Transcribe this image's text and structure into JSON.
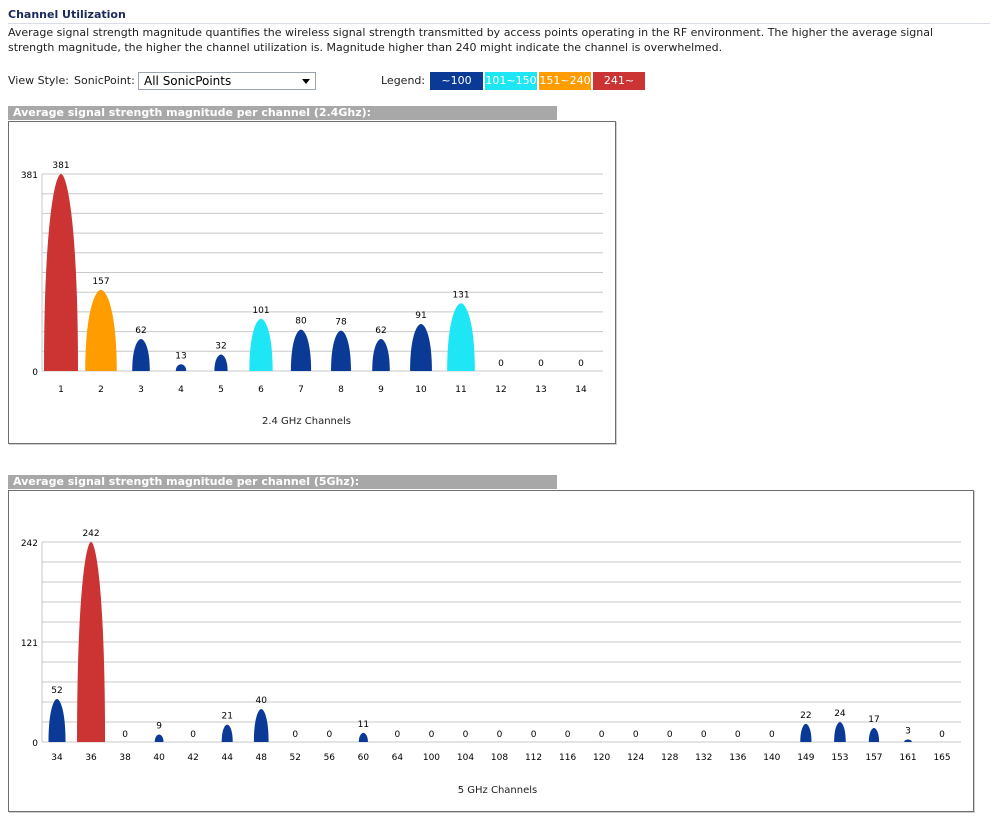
{
  "page": {
    "title": "Channel Utilization",
    "description": "Average signal strength magnitude quantifies the wireless signal strength transmitted by access points operating in the RF environment. The higher the average signal strength magnitude, the higher the channel utilization is. Magnitude higher than 240 might indicate the channel is overwhelmed."
  },
  "controls": {
    "view_style_label": "View Style:",
    "sonicpoint_label": "SonicPoint:",
    "sonicpoint_value": "All SonicPoints",
    "legend_label": "Legend:",
    "legend": [
      {
        "label": "~100",
        "color": "#0a3a96"
      },
      {
        "label": "101~150",
        "color": "#1ee6f5"
      },
      {
        "label": "151~240",
        "color": "#ff9c00"
      },
      {
        "label": "241~",
        "color": "#cc3333"
      }
    ]
  },
  "colors": {
    "low": "#0a3a96",
    "mid": "#1ee6f5",
    "high": "#ff9c00",
    "over": "#cc3333",
    "grid": "#c8c8c8"
  },
  "panels": {
    "ghz24_header": "Average signal strength magnitude per channel (2.4Ghz):",
    "ghz5_header": "Average signal strength magnitude per channel (5Ghz):"
  },
  "chart_data": [
    {
      "type": "bar",
      "title": "Average signal strength magnitude per channel (2.4Ghz):",
      "xlabel": "2.4 GHz Channels",
      "ylabel": "",
      "ylim": [
        0,
        381
      ],
      "yticks": [
        0,
        381
      ],
      "grid": true,
      "categories": [
        "1",
        "2",
        "3",
        "4",
        "5",
        "6",
        "7",
        "8",
        "9",
        "10",
        "11",
        "12",
        "13",
        "14"
      ],
      "values": [
        381,
        157,
        62,
        13,
        32,
        101,
        80,
        78,
        62,
        91,
        131,
        0,
        0,
        0
      ]
    },
    {
      "type": "bar",
      "title": "Average signal strength magnitude per channel (5Ghz):",
      "xlabel": "5 GHz Channels",
      "ylabel": "",
      "ylim": [
        0,
        242
      ],
      "yticks": [
        0,
        121,
        242
      ],
      "grid": true,
      "categories": [
        "34",
        "36",
        "38",
        "40",
        "42",
        "44",
        "48",
        "52",
        "56",
        "60",
        "64",
        "100",
        "104",
        "108",
        "112",
        "116",
        "120",
        "124",
        "128",
        "132",
        "136",
        "140",
        "149",
        "153",
        "157",
        "161",
        "165"
      ],
      "values": [
        52,
        242,
        0,
        9,
        0,
        21,
        40,
        0,
        0,
        11,
        0,
        0,
        0,
        0,
        0,
        0,
        0,
        0,
        0,
        0,
        0,
        0,
        22,
        24,
        17,
        3,
        0
      ]
    }
  ]
}
